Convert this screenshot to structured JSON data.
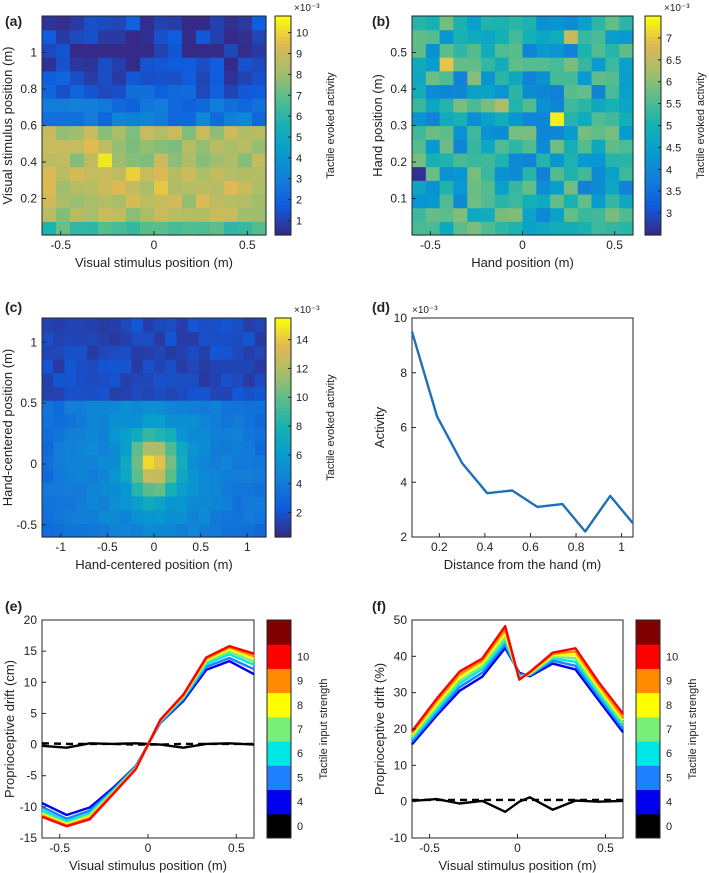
{
  "figure": {
    "note": "Six-panel figure; heatmap cell intensities are estimated from the colour in the screenshot."
  },
  "chart_data": [
    {
      "panel_label": "(a)",
      "type": "heatmap",
      "xlabel": "Visual stimulus position (m)",
      "ylabel": "Visual stimulus position (m)",
      "x_range": [
        -0.6,
        0.6
      ],
      "y_range": [
        0,
        1.2
      ],
      "x_ticks": [
        "-0.5",
        "0",
        "0.5"
      ],
      "y_ticks": [
        "0.2",
        "0.4",
        "0.6",
        "0.8",
        "1"
      ],
      "colorbar": {
        "label": "Tactile evoked activity",
        "exponent": "×10⁻³",
        "range": [
          0.3,
          10.8
        ],
        "ticks": [
          "1",
          "2",
          "3",
          "4",
          "5",
          "6",
          "7",
          "8",
          "9",
          "10"
        ]
      },
      "rows": 16,
      "cols": 16,
      "row_order": "bottom_to_top",
      "row_means": [
        6.5,
        8.3,
        8.6,
        8.8,
        8.7,
        8.2,
        8.3,
        8.3,
        2.8,
        2.3,
        1.6,
        1.3,
        1.0,
        0.8,
        0.9,
        1.1
      ],
      "highlights": [
        [
          5,
          4,
          10.4
        ],
        [
          4,
          6,
          10.0
        ],
        [
          3,
          8,
          9.8
        ],
        [
          3,
          13,
          9.5
        ],
        [
          2,
          11,
          9.4
        ],
        [
          6,
          3,
          9.6
        ]
      ]
    },
    {
      "panel_label": "(b)",
      "type": "heatmap",
      "xlabel": "Hand position (m)",
      "ylabel": "Hand position (m)",
      "x_range": [
        -0.6,
        0.6
      ],
      "y_range": [
        0,
        0.6
      ],
      "x_ticks": [
        "-0.5",
        "0",
        "0.5"
      ],
      "y_ticks": [
        "0.1",
        "0.2",
        "0.3",
        "0.4",
        "0.5"
      ],
      "colorbar": {
        "label": "Tactile evoked activity",
        "exponent": "×10⁻³",
        "range": [
          2.5,
          7.5
        ],
        "ticks": [
          "3",
          "3.5",
          "4",
          "4.5",
          "5",
          "5.5",
          "6",
          "6.5",
          "7"
        ]
      },
      "rows": 16,
      "cols": 16,
      "row_order": "bottom_to_top",
      "row_means": [
        4.9,
        4.9,
        4.9,
        4.9,
        4.9,
        4.9,
        4.9,
        4.9,
        4.9,
        4.9,
        4.9,
        4.9,
        4.9,
        4.9,
        4.9,
        4.9
      ],
      "highlights": [
        [
          8,
          10,
          7.4
        ],
        [
          12,
          2,
          7.0
        ],
        [
          4,
          0,
          2.6
        ],
        [
          14,
          11,
          6.6
        ],
        [
          9,
          6,
          6.3
        ]
      ]
    },
    {
      "panel_label": "(c)",
      "type": "heatmap",
      "xlabel": "Hand-centered position (m)",
      "ylabel": "Hand-centered position (m)",
      "x_range": [
        -1.2,
        1.2
      ],
      "y_range": [
        -0.6,
        1.2
      ],
      "x_ticks": [
        "-1",
        "-0.5",
        "0",
        "0.5",
        "1"
      ],
      "y_ticks": [
        "-0.5",
        "0",
        "0.5",
        "1"
      ],
      "colorbar": {
        "label": "Tactile evoked activity",
        "exponent": "×10⁻³",
        "range": [
          0.3,
          15.5
        ],
        "ticks": [
          "2",
          "4",
          "6",
          "8",
          "10",
          "12",
          "14"
        ]
      },
      "rows": 16,
      "cols": 20,
      "row_order": "bottom_to_top",
      "peak": 15.0,
      "peak_x": 0,
      "peak_y": 0,
      "near_range_level": 6.0,
      "far_range_level": 1.5,
      "far_start_y": 0.55
    },
    {
      "panel_label": "(d)",
      "type": "line",
      "xlabel": "Distance from the hand (m)",
      "ylabel": "Activity",
      "y_exponent": "×10⁻³",
      "xlim": [
        0.08,
        1.05
      ],
      "ylim": [
        2,
        10
      ],
      "x_ticks": [
        0.2,
        0.4,
        0.6,
        0.8,
        1
      ],
      "y_ticks": [
        2,
        4,
        6,
        8,
        10
      ],
      "series": [
        {
          "name": "activity",
          "color": "#1f70b8",
          "x": [
            0.08,
            0.19,
            0.3,
            0.41,
            0.52,
            0.63,
            0.74,
            0.84,
            0.95,
            1.05
          ],
          "y": [
            9.5,
            6.4,
            4.7,
            3.6,
            3.7,
            3.1,
            3.2,
            2.2,
            3.5,
            2.5
          ]
        }
      ]
    },
    {
      "panel_label": "(e)",
      "type": "line",
      "xlabel": "Visual stimulus position (m)",
      "ylabel": "Proprioceptive drift (cm)",
      "xlim": [
        -0.6,
        0.6
      ],
      "ylim": [
        -15,
        20
      ],
      "x_ticks": [
        "-0.5",
        "0",
        "0.5"
      ],
      "y_ticks": [
        "-15",
        "-10",
        "-5",
        "0",
        "5",
        "10",
        "15",
        "20"
      ],
      "x": [
        -0.6,
        -0.46,
        -0.33,
        -0.2,
        -0.07,
        0.07,
        0.2,
        0.33,
        0.46,
        0.6
      ],
      "colorbar": {
        "label": "Tactile input strength",
        "ticks": [
          "0",
          "4",
          "5",
          "6",
          "7",
          "8",
          "9",
          "10"
        ],
        "colors": [
          "#000000",
          "#0000ee",
          "#1f80ff",
          "#00e6e6",
          "#78f078",
          "#ffff00",
          "#ff8c00",
          "#ff0000",
          "#7f0000"
        ]
      },
      "series": [
        {
          "name": "baseline",
          "color": "#000000",
          "style": "dashed",
          "values": [
            0.2,
            0.1,
            0.1,
            0.1,
            0.0,
            0.0,
            0.1,
            0.1,
            0.1,
            0.1
          ]
        },
        {
          "name": "0",
          "color": "#000000",
          "style": "solid",
          "values": [
            -0.2,
            -0.5,
            0.2,
            0.1,
            0.2,
            0.0,
            -0.5,
            0.1,
            0.2,
            0.0
          ]
        },
        {
          "name": "4",
          "color": "#0000ee",
          "style": "solid",
          "values": [
            -9.4,
            -11.3,
            -10.1,
            -7.0,
            -3.5,
            3.5,
            7.0,
            12.0,
            13.4,
            11.3
          ]
        },
        {
          "name": "5",
          "color": "#1f80ff",
          "style": "solid",
          "values": [
            -10.0,
            -11.9,
            -10.6,
            -7.3,
            -3.6,
            3.6,
            7.3,
            12.5,
            13.9,
            12.1
          ]
        },
        {
          "name": "6",
          "color": "#00e6e6",
          "style": "solid",
          "values": [
            -10.5,
            -12.3,
            -11.0,
            -7.5,
            -3.7,
            3.7,
            7.5,
            12.9,
            14.5,
            12.8
          ]
        },
        {
          "name": "7",
          "color": "#78f078",
          "style": "solid",
          "values": [
            -10.9,
            -12.6,
            -11.3,
            -7.7,
            -3.8,
            3.8,
            7.7,
            13.3,
            14.9,
            13.3
          ]
        },
        {
          "name": "8",
          "color": "#ffff00",
          "style": "solid",
          "values": [
            -11.2,
            -12.8,
            -11.6,
            -7.8,
            -3.9,
            3.9,
            7.8,
            13.6,
            15.3,
            13.8
          ]
        },
        {
          "name": "9",
          "color": "#ff8c00",
          "style": "solid",
          "values": [
            -11.4,
            -13.0,
            -11.8,
            -7.9,
            -3.9,
            3.9,
            7.9,
            13.8,
            15.6,
            14.2
          ]
        },
        {
          "name": "10",
          "color": "#ff0000",
          "style": "solid",
          "values": [
            -11.6,
            -13.1,
            -12.0,
            -8.0,
            -4.0,
            4.0,
            8.0,
            14.0,
            15.8,
            14.6
          ]
        }
      ]
    },
    {
      "panel_label": "(f)",
      "type": "line",
      "xlabel": "Visual stimulus position (m)",
      "ylabel": "Proprioceptive drift (%)",
      "xlim": [
        -0.6,
        0.6
      ],
      "ylim": [
        -10,
        50
      ],
      "x_ticks": [
        "-0.5",
        "0",
        "0.5"
      ],
      "y_ticks": [
        "-10",
        "0",
        "10",
        "20",
        "30",
        "40",
        "50"
      ],
      "x": [
        -0.6,
        -0.46,
        -0.33,
        -0.2,
        -0.07,
        0.01,
        0.07,
        0.2,
        0.33,
        0.46,
        0.6
      ],
      "colorbar": {
        "label": "Tactile input strength",
        "ticks": [
          "0",
          "4",
          "5",
          "6",
          "7",
          "8",
          "9",
          "10"
        ],
        "colors": [
          "#000000",
          "#0000ee",
          "#1f80ff",
          "#00e6e6",
          "#78f078",
          "#ffff00",
          "#ff8c00",
          "#ff0000",
          "#7f0000"
        ]
      },
      "series": [
        {
          "name": "baseline",
          "color": "#000000",
          "style": "dashed",
          "values": [
            0.5,
            0.5,
            0.5,
            0.5,
            0.5,
            0.5,
            0.5,
            0.5,
            0.5,
            0.5,
            0.5
          ]
        },
        {
          "name": "0",
          "color": "#000000",
          "style": "solid",
          "values": [
            0.2,
            0.7,
            -0.5,
            0.2,
            -2.8,
            0.0,
            1.2,
            -2.2,
            0.3,
            0.0,
            0.2
          ]
        },
        {
          "name": "4",
          "color": "#0000ee",
          "style": "solid",
          "values": [
            15.8,
            23.7,
            30.5,
            34.4,
            42.3,
            35.5,
            34.5,
            38.0,
            36.4,
            28.0,
            19.1
          ]
        },
        {
          "name": "5",
          "color": "#1f80ff",
          "style": "solid",
          "values": [
            16.5,
            24.4,
            31.5,
            35.5,
            43.2,
            35.0,
            34.8,
            38.8,
            37.4,
            28.9,
            20.0
          ]
        },
        {
          "name": "6",
          "color": "#00e6e6",
          "style": "solid",
          "values": [
            17.2,
            25.2,
            32.5,
            36.5,
            44.2,
            34.6,
            35.0,
            39.4,
            38.5,
            29.8,
            20.8
          ]
        },
        {
          "name": "7",
          "color": "#78f078",
          "style": "solid",
          "values": [
            17.8,
            26.0,
            33.3,
            37.3,
            45.2,
            34.3,
            35.1,
            39.8,
            39.5,
            30.6,
            21.6
          ]
        },
        {
          "name": "8",
          "color": "#ffff00",
          "style": "solid",
          "values": [
            18.4,
            26.8,
            34.2,
            38.1,
            46.3,
            34.0,
            35.3,
            40.3,
            40.4,
            31.4,
            22.4
          ]
        },
        {
          "name": "9",
          "color": "#ff8c00",
          "style": "solid",
          "values": [
            18.9,
            27.6,
            35.0,
            38.8,
            47.3,
            33.8,
            35.5,
            40.7,
            41.3,
            32.2,
            23.2
          ]
        },
        {
          "name": "10",
          "color": "#ff0000",
          "style": "solid",
          "values": [
            19.4,
            28.3,
            35.8,
            39.4,
            48.3,
            33.6,
            35.7,
            41.0,
            42.2,
            33.0,
            24.2
          ]
        }
      ]
    }
  ]
}
